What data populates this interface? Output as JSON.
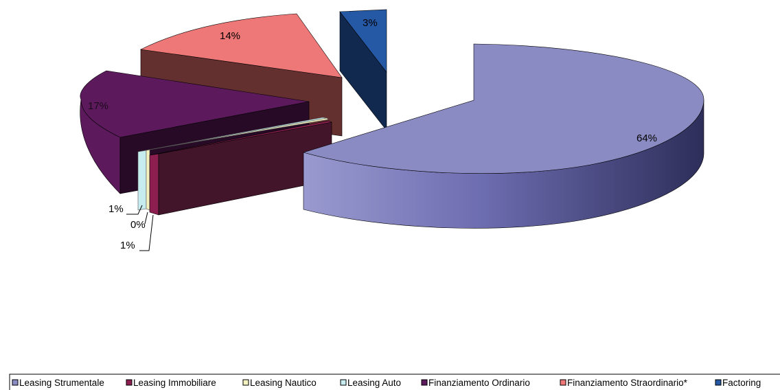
{
  "chart_data": {
    "type": "pie",
    "style": "3d-exploded",
    "legend_position": "bottom",
    "slices": [
      {
        "name": "Leasing Strumentale",
        "value": 64,
        "label": "64%",
        "color": "#8b8bc4"
      },
      {
        "name": "Leasing Immobiliare",
        "value": 1,
        "label": "1%",
        "color": "#8c1f4f"
      },
      {
        "name": "Leasing Nautico",
        "value": 0,
        "label": "0%",
        "color": "#f4f3c0"
      },
      {
        "name": "Leasing Auto",
        "value": 1,
        "label": "1%",
        "color": "#c6ecef"
      },
      {
        "name": "Finanziamento Ordinario",
        "value": 17,
        "label": "17%",
        "color": "#5c1a5c"
      },
      {
        "name": "Finanziamento Straordinario*",
        "value": 14,
        "label": "14%",
        "color": "#ee7777"
      },
      {
        "name": "Factoring",
        "value": 3,
        "label": "3%",
        "color": "#2559a5"
      }
    ]
  }
}
